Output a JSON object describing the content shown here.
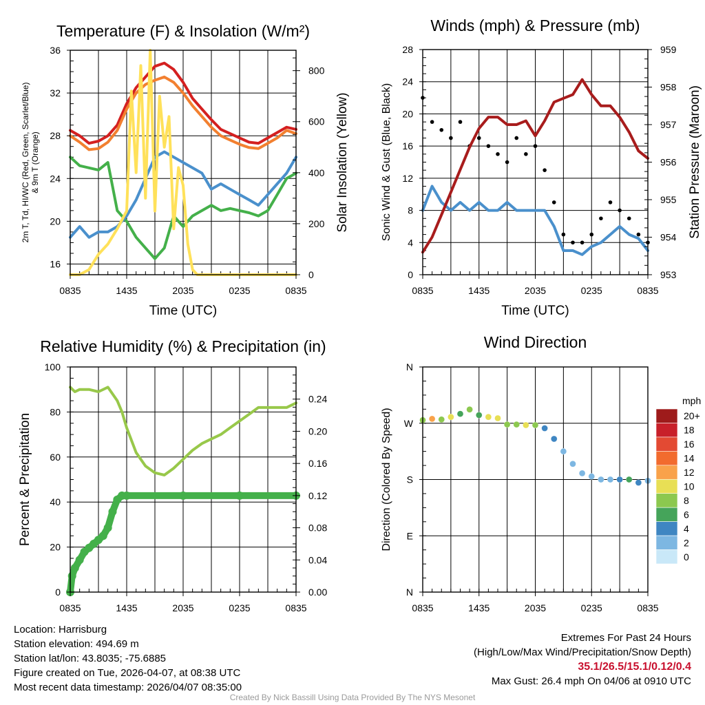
{
  "footer": {
    "location": "Location: Harrisburg",
    "elevation": "Station elevation: 494.69 m",
    "latlon": "Station lat/lon: 43.8035; -75.6885",
    "created": "Figure created on Tue, 2026-04-07, at 08:38 UTC",
    "recent": "Most recent data timestamp: 2026/04/07 08:35:00",
    "extremes_title": "Extremes For Past 24 Hours",
    "extremes_sub": "(High/Low/Max Wind/Precipitation/Snow Depth)",
    "extremes_values": "35.1/26.5/15.1/0.12/0.4",
    "max_gust": "Max Gust: 26.4 mph On 04/06 at 0910 UTC",
    "credit": "Created By Nick Bassill Using Data Provided By The NYS Mesonet"
  },
  "colors": {
    "temp": "#d42020",
    "nine_m": "#f28030",
    "dewpoint": "#44b04a",
    "windchill": "#4a90cc",
    "insolation": "#ffe15a",
    "wind": "#4a90cc",
    "gust": "#000000",
    "pressure": "#a81c1c",
    "rh": "#98c84a",
    "precip": "#44b04a",
    "extremes": "#c8102e"
  },
  "chart_data": [
    {
      "id": "temperature",
      "type": "line",
      "title": "Temperature (F) & Insolation (W/m²)",
      "xlabel": "Time (UTC)",
      "ylabel_left": "2m T, Td, HI/WC (Red, Green, Scarlet/Blue) & 9m T (Orange)",
      "ylabel_left_line1": "2m T, Td, HI/WC (Red, Green, Scarlet/Blue)",
      "ylabel_left_line2": "& 9m T (Orange)",
      "ylabel_right": "Solar Insolation (Yellow)",
      "x_ticks": [
        "0835",
        "1435",
        "2035",
        "0235",
        "0835"
      ],
      "x_hours": [
        0,
        24
      ],
      "ylim": [
        15,
        36
      ],
      "y_ticks": [
        16,
        20,
        24,
        28,
        32,
        36
      ],
      "ylim_right": [
        0,
        880
      ],
      "y_ticks_right": [
        0,
        200,
        400,
        600,
        800
      ],
      "series": [
        {
          "name": "2m T (Red)",
          "color": "#d42020",
          "x": [
            0,
            1,
            2,
            3,
            4,
            5,
            6,
            7,
            8,
            9,
            10,
            11,
            12,
            13,
            14,
            15,
            16,
            17,
            18,
            19,
            20,
            21,
            22,
            23,
            24
          ],
          "values": [
            28.5,
            28.0,
            27.3,
            27.5,
            28.0,
            29.0,
            31.0,
            32.5,
            33.5,
            34.5,
            34.8,
            34.2,
            33.0,
            31.5,
            30.5,
            29.5,
            28.6,
            28.2,
            27.8,
            27.4,
            27.3,
            27.8,
            28.3,
            28.8,
            28.6
          ]
        },
        {
          "name": "9m T (Orange)",
          "color": "#f28030",
          "x": [
            0,
            1,
            2,
            3,
            4,
            5,
            6,
            7,
            8,
            9,
            10,
            11,
            12,
            13,
            14,
            15,
            16,
            17,
            18,
            19,
            20,
            21,
            22,
            23,
            24
          ],
          "values": [
            28.0,
            27.4,
            26.7,
            26.8,
            27.4,
            28.5,
            30.5,
            32.0,
            32.8,
            33.2,
            33.5,
            33.0,
            32.0,
            30.8,
            29.8,
            28.8,
            28.0,
            27.6,
            27.2,
            26.9,
            26.8,
            27.3,
            27.8,
            28.5,
            28.2
          ]
        },
        {
          "name": "Td (Green)",
          "color": "#44b04a",
          "x": [
            0,
            1,
            2,
            3,
            4,
            5,
            6,
            7,
            8,
            9,
            10,
            11,
            12,
            13,
            14,
            15,
            16,
            17,
            18,
            19,
            20,
            21,
            22,
            23,
            24
          ],
          "values": [
            26.0,
            25.2,
            25.0,
            24.8,
            25.5,
            21.0,
            20.0,
            18.5,
            17.5,
            16.5,
            17.5,
            20.5,
            19.5,
            20.5,
            21.0,
            21.5,
            21.0,
            21.2,
            21.0,
            20.8,
            20.5,
            21.0,
            22.5,
            24.0,
            24.5
          ]
        },
        {
          "name": "HI/WC (Blue)",
          "color": "#4a90cc",
          "x": [
            0,
            1,
            2,
            3,
            4,
            5,
            6,
            7,
            8,
            9,
            10,
            11,
            12,
            13,
            14,
            15,
            16,
            17,
            18,
            19,
            20,
            21,
            22,
            23,
            24
          ],
          "values": [
            18.5,
            19.5,
            18.5,
            19.0,
            19.0,
            19.5,
            20.5,
            22.0,
            24.0,
            26.0,
            26.5,
            26.0,
            25.5,
            25.0,
            24.5,
            23.0,
            23.5,
            23.0,
            22.5,
            22.0,
            21.5,
            22.5,
            23.5,
            24.5,
            26.0
          ]
        },
        {
          "name": "Solar Insolation (Yellow)",
          "color": "#ffe15a",
          "axis": "right",
          "x": [
            0,
            1,
            2,
            3,
            4,
            5,
            6,
            6.5,
            7,
            7.5,
            8,
            8.5,
            9,
            9.5,
            10,
            10.5,
            11,
            11.5,
            12,
            12.5,
            13,
            13.5,
            14,
            24
          ],
          "values": [
            0,
            0,
            20,
            80,
            120,
            180,
            250,
            720,
            400,
            820,
            300,
            880,
            250,
            700,
            500,
            620,
            180,
            420,
            350,
            120,
            20,
            0,
            0,
            0
          ]
        }
      ]
    },
    {
      "id": "winds",
      "type": "line",
      "title": "Winds (mph) & Pressure (mb)",
      "xlabel": "Time (UTC)",
      "ylabel_left": "Sonic Wind & Gust (Blue, Black)",
      "ylabel_right": "Station Pressure (Maroon)",
      "x_ticks": [
        "0835",
        "1435",
        "2035",
        "0235",
        "0835"
      ],
      "x_hours": [
        0,
        24
      ],
      "ylim": [
        0,
        28
      ],
      "y_ticks": [
        0,
        4,
        8,
        12,
        16,
        20,
        24,
        28
      ],
      "ylim_right": [
        953,
        959
      ],
      "y_ticks_right": [
        953,
        954,
        955,
        956,
        957,
        958,
        959
      ],
      "series": [
        {
          "name": "Sonic Wind (Blue)",
          "color": "#4a90cc",
          "x": [
            0,
            1,
            2,
            3,
            4,
            5,
            6,
            7,
            8,
            9,
            10,
            11,
            12,
            13,
            14,
            15,
            16,
            17,
            18,
            19,
            20,
            21,
            22,
            23,
            24
          ],
          "values": [
            8,
            11,
            9,
            8,
            9,
            8,
            9,
            8,
            8,
            9,
            8,
            8,
            8,
            8,
            6,
            3,
            3,
            2.5,
            3.5,
            4,
            5,
            6,
            5,
            4.5,
            3
          ]
        },
        {
          "name": "Gust (Black)",
          "color": "#000000",
          "x": [
            0,
            1,
            2,
            3,
            4,
            5,
            6,
            7,
            8,
            9,
            10,
            11,
            12,
            13,
            14,
            15,
            16,
            17,
            18,
            19,
            20,
            21,
            22,
            23,
            24
          ],
          "values": [
            22,
            19,
            18,
            17,
            19,
            16,
            17,
            16,
            15,
            14,
            17,
            15,
            16,
            13,
            9,
            5,
            4,
            4,
            5,
            7,
            9,
            8,
            7,
            5,
            4
          ]
        },
        {
          "name": "Station Pressure (Maroon)",
          "color": "#a81c1c",
          "axis": "right",
          "x": [
            0,
            1,
            2,
            3,
            4,
            5,
            6,
            7,
            8,
            9,
            10,
            11,
            12,
            13,
            14,
            15,
            16,
            17,
            18,
            19,
            20,
            21,
            22,
            23,
            24
          ],
          "values": [
            953.6,
            954.0,
            954.6,
            955.2,
            955.8,
            956.4,
            956.9,
            957.2,
            957.2,
            957.0,
            957.0,
            957.1,
            956.7,
            957.1,
            957.6,
            957.7,
            957.8,
            958.2,
            957.8,
            957.5,
            957.5,
            957.2,
            956.8,
            956.3,
            956.1
          ]
        }
      ]
    },
    {
      "id": "humidity",
      "type": "line",
      "title": "Relative Humidity (%) & Precipitation (in)",
      "xlabel": "",
      "ylabel_left": "Percent & Precipitation",
      "x_ticks": [
        "0835",
        "1435",
        "2035",
        "0235",
        "0835"
      ],
      "x_hours": [
        0,
        24
      ],
      "ylim": [
        0,
        100
      ],
      "y_ticks": [
        0,
        20,
        40,
        60,
        80,
        100
      ],
      "ylim_right": [
        0,
        0.28
      ],
      "y_ticks_right": [
        0.0,
        0.04,
        0.08,
        0.12,
        0.16,
        0.2,
        0.24
      ],
      "y_ticks_right_labels": [
        "0.00",
        "0.04",
        "0.08",
        "0.12",
        "0.16",
        "0.20",
        "0.24"
      ],
      "series": [
        {
          "name": "Relative Humidity",
          "color": "#98c84a",
          "x": [
            0,
            0.5,
            1,
            2,
            3,
            4,
            5,
            5.5,
            6,
            7,
            8,
            9,
            10,
            11,
            12,
            13,
            14,
            15,
            16,
            17,
            18,
            19,
            20,
            21,
            22,
            23,
            24
          ],
          "values": [
            91,
            89,
            90,
            90,
            89,
            91,
            85,
            80,
            73,
            62,
            56,
            53,
            52,
            55,
            59,
            63,
            66,
            68,
            70,
            73,
            76,
            79,
            82,
            82,
            82,
            82,
            84
          ]
        },
        {
          "name": "Precipitation (in)",
          "color": "#44b04a",
          "axis": "right",
          "x": [
            0,
            0.2,
            0.5,
            1,
            1.5,
            2,
            2.5,
            3,
            3.5,
            4,
            4.5,
            5,
            5.5,
            6,
            12,
            18,
            24
          ],
          "values": [
            0,
            0.02,
            0.03,
            0.04,
            0.05,
            0.055,
            0.06,
            0.065,
            0.07,
            0.08,
            0.1,
            0.115,
            0.12,
            0.12,
            0.12,
            0.12,
            0.12
          ]
        }
      ]
    },
    {
      "id": "wind_direction",
      "type": "scatter",
      "title": "Wind Direction",
      "xlabel": "",
      "ylabel_left": "Direction (Colored By Speed)",
      "x_ticks": [
        "0835",
        "1435",
        "2035",
        "0235",
        "0835"
      ],
      "x_hours": [
        0,
        24
      ],
      "ylim": [
        0,
        360
      ],
      "y_ticks": [
        0,
        90,
        180,
        270,
        360
      ],
      "y_tick_labels": [
        "N",
        "E",
        "S",
        "W",
        "N"
      ],
      "colorbar": {
        "title": "mph",
        "labels": [
          "20+",
          "18",
          "16",
          "14",
          "12",
          "10",
          "8",
          "6",
          "4",
          "2",
          "0"
        ],
        "colors": [
          "#9e1b1b",
          "#c8202a",
          "#e34a33",
          "#f26b2e",
          "#f9a24a",
          "#e8df55",
          "#8cc84f",
          "#45a45a",
          "#3f86c2",
          "#7db7e2",
          "#c9e8f8"
        ]
      },
      "series": [
        {
          "name": "Direction (deg)",
          "x": [
            0,
            1,
            2,
            3,
            4,
            5,
            6,
            7,
            8,
            9,
            10,
            11,
            12,
            13,
            14,
            15,
            16,
            17,
            18,
            19,
            20,
            21,
            22,
            23,
            24
          ],
          "values": [
            275,
            277,
            276,
            280,
            285,
            292,
            283,
            280,
            278,
            268,
            268,
            267,
            267,
            262,
            245,
            225,
            205,
            190,
            185,
            180,
            180,
            180,
            180,
            175,
            178
          ],
          "speeds": [
            9,
            12,
            8,
            10,
            6,
            9,
            7,
            10,
            11,
            8,
            9,
            11,
            9,
            5,
            4,
            3,
            2,
            2,
            3,
            2,
            3,
            5,
            6,
            4,
            3
          ]
        }
      ]
    }
  ]
}
